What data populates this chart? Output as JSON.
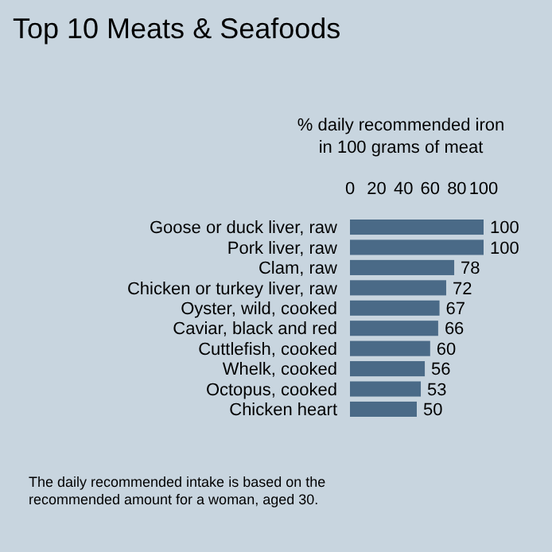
{
  "chart_data": {
    "type": "bar",
    "orientation": "horizontal",
    "title": "Top 10 Meats & Seafoods",
    "xlabel": "% daily recommended iron\nin 100 grams of meat",
    "categories": [
      "Goose or duck liver, raw",
      "Pork liver, raw",
      "Clam, raw",
      "Chicken or turkey liver, raw",
      "Oyster, wild, cooked",
      "Caviar, black and red",
      "Cuttlefish, cooked",
      "Whelk, cooked",
      "Octopus, cooked",
      "Chicken heart"
    ],
    "values": [
      100,
      100,
      78,
      72,
      67,
      66,
      60,
      56,
      53,
      50
    ],
    "color": "#4a6a87",
    "xlim": [
      0,
      100
    ],
    "xticks": [
      0,
      20,
      40,
      60,
      80,
      100
    ],
    "data_labels": true,
    "annotations": [
      "The daily recommended intake is based on the\nrecommended amount for a woman, aged 30."
    ]
  }
}
